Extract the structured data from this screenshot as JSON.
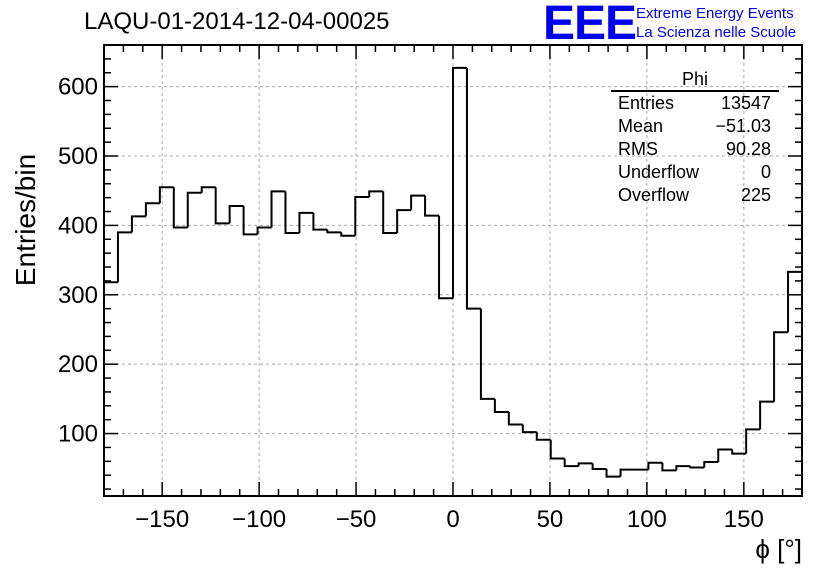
{
  "header": {
    "run_title": "LAQU-01-2014-12-04-00025",
    "logo_text": "EEE",
    "logo_line1": "Extreme Energy Events",
    "logo_line2": "La Scienza nelle Scuole"
  },
  "stats_box": {
    "title": "Phi",
    "rows": [
      {
        "label": "Entries",
        "value": "13547"
      },
      {
        "label": "Mean",
        "value": "−51.03"
      },
      {
        "label": "RMS",
        "value": "90.28"
      },
      {
        "label": "Underflow",
        "value": "0"
      },
      {
        "label": "Overflow",
        "value": "225"
      }
    ]
  },
  "chart_data": {
    "type": "bar",
    "title": "LAQU-01-2014-12-04-00025",
    "xlabel": "ϕ [°]",
    "ylabel": "Entries/bin",
    "xlim": [
      -180,
      180
    ],
    "ylim": [
      10,
      660
    ],
    "grid": true,
    "bin_width": 7.2,
    "x_ticks": [
      -150,
      -100,
      -50,
      0,
      50,
      100,
      150
    ],
    "x_tick_labels": [
      "−150",
      "−100",
      "−50",
      "0",
      "50",
      "100",
      "150"
    ],
    "y_ticks": [
      100,
      200,
      300,
      400,
      500,
      600
    ],
    "y_tick_labels": [
      "100",
      "200",
      "300",
      "400",
      "500",
      "600"
    ],
    "bin_edges_start": -180,
    "values": [
      318,
      390,
      413,
      432,
      455,
      397,
      447,
      455,
      403,
      428,
      387,
      397,
      449,
      389,
      418,
      394,
      390,
      385,
      441,
      449,
      389,
      422,
      443,
      414,
      295,
      627,
      280,
      150,
      131,
      113,
      102,
      91,
      64,
      53,
      57,
      49,
      38,
      48,
      48,
      58,
      47,
      53,
      51,
      59,
      77,
      71,
      106,
      146,
      246,
      333
    ]
  }
}
